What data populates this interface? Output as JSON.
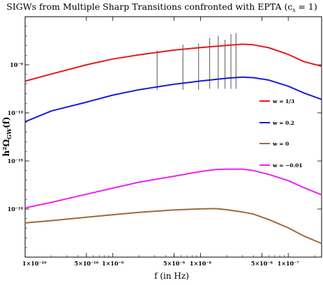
{
  "chart_data": {
    "type": "line",
    "title": "SIGWs from Multiple Sharp Transitions confronted with EPTA (c",
    "title_sub": "s",
    "title_tail": " = 1)",
    "xlabel": "f (in Hz)",
    "ylabel": "h²Ω",
    "ylabel_sub": "GW",
    "ylabel_tail": "(f)",
    "x_scale": "log",
    "y_scale": "log",
    "xlim": [
      1e-10,
      2.4e-07
    ],
    "ylim": [
      1e-29,
      0.0001
    ],
    "x_ticks": [
      {
        "value": 1e-10,
        "label": "1×10⁻¹⁰"
      },
      {
        "value": 5e-10,
        "label": "5×10⁻¹⁰"
      },
      {
        "value": 1e-09,
        "label": "1×10⁻⁹"
      },
      {
        "value": 5e-09,
        "label": "5×10⁻⁹"
      },
      {
        "value": 1e-08,
        "label": "1×10⁻⁸"
      },
      {
        "value": 5e-08,
        "label": "5×10⁻⁸"
      },
      {
        "value": 1e-07,
        "label": "1×10⁻⁷"
      }
    ],
    "y_ticks": [
      {
        "value": 1e-09,
        "label": "10⁻⁹"
      },
      {
        "value": 1e-14,
        "label": "10⁻¹⁴"
      },
      {
        "value": 1e-19,
        "label": "10⁻¹⁹"
      },
      {
        "value": 1e-24,
        "label": "10⁻²⁴"
      }
    ],
    "series": [
      {
        "name": "w = 1/3",
        "color": "#e41a1c",
        "x": [
          1e-10,
          2e-10,
          5e-10,
          1e-09,
          2e-09,
          5e-09,
          1e-08,
          2e-08,
          3e-08,
          4e-08,
          6e-08,
          1e-07,
          1.5e-07,
          2.4e-07
        ],
        "y": [
          2e-11,
          1.1e-10,
          1e-09,
          4e-09,
          1.1e-08,
          3.4e-08,
          6.3e-08,
          1.05e-07,
          1.4e-07,
          1.2e-07,
          6e-08,
          1.2e-08,
          2.2e-09,
          7e-10
        ]
      },
      {
        "name": "w = 0.2",
        "color": "#1a1adc",
        "x": [
          1e-10,
          2e-10,
          5e-10,
          1e-09,
          2e-09,
          5e-09,
          1e-08,
          2e-08,
          3e-08,
          4e-08,
          6e-08,
          1e-07,
          1.5e-07,
          2.4e-07
        ],
        "y": [
          1.2e-15,
          1.6e-14,
          1.3e-13,
          7e-13,
          2.6e-12,
          9.5e-12,
          2.1e-11,
          4e-11,
          5.3e-11,
          4.6e-11,
          2.6e-11,
          6e-12,
          1.2e-12,
          2.5e-13
        ]
      },
      {
        "name": "w = 0",
        "color": "#9b6a3d",
        "x": [
          1e-10,
          2e-10,
          5e-10,
          1e-09,
          2e-09,
          5e-09,
          1e-08,
          1.5e-08,
          2e-08,
          3e-08,
          4e-08,
          6e-08,
          1e-07,
          1.5e-07,
          2.4e-07
        ],
        "y": [
          3.6e-26,
          6.3e-26,
          1.4e-25,
          2.6e-25,
          4.5e-25,
          8e-25,
          1.05e-24,
          1.1e-24,
          8.5e-25,
          5e-25,
          3e-25,
          8e-26,
          1.1e-26,
          1.6e-27,
          2.6e-28
        ]
      },
      {
        "name": "w = −0.01",
        "color": "#ee22ee",
        "x": [
          1e-10,
          2e-10,
          5e-10,
          1e-09,
          2e-09,
          5e-09,
          1e-08,
          1.5e-08,
          2e-08,
          3e-08,
          4e-08,
          6e-08,
          1e-07,
          1.5e-07,
          2.4e-07
        ],
        "y": [
          1.3e-24,
          5e-24,
          3.5e-23,
          1.5e-22,
          6.3e-22,
          2.6e-21,
          8e-21,
          1.3e-20,
          1.4e-20,
          1.4e-20,
          1e-20,
          4e-21,
          9e-22,
          1.7e-22,
          3e-23
        ]
      }
    ],
    "epta_bars": {
      "color": "#707070",
      "bars": [
        {
          "x": 3.2e-09,
          "low": 2.5e-12,
          "high": 3.2e-08
        },
        {
          "x": 6.3e-09,
          "low": 2.5e-12,
          "high": 1.3e-07
        },
        {
          "x": 9.5e-09,
          "low": 2.5e-12,
          "high": 1.6e-07
        },
        {
          "x": 1.27e-08,
          "low": 3.2e-12,
          "high": 6.3e-07
        },
        {
          "x": 1.59e-08,
          "low": 3.2e-12,
          "high": 1e-06
        },
        {
          "x": 1.9e-08,
          "low": 3.2e-12,
          "high": 4e-07
        },
        {
          "x": 2.22e-08,
          "low": 3.2e-12,
          "high": 1.6e-06
        },
        {
          "x": 2.54e-08,
          "low": 3.2e-12,
          "high": 2e-06
        }
      ]
    },
    "legend_placement": "right"
  }
}
